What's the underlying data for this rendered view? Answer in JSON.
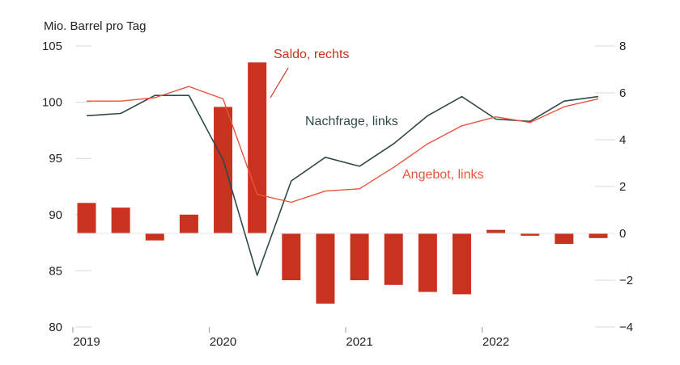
{
  "chart_data": {
    "type": "bar+line",
    "y_axis_left_label": "Mio. Barrel pro Tag",
    "y_left_ticks": [
      80,
      85,
      90,
      95,
      100,
      105
    ],
    "y_left_lim": [
      80,
      105
    ],
    "y_right_ticks": [
      -4,
      -2,
      0,
      2,
      4,
      6,
      8
    ],
    "y_right_tick_labels": [
      "−4",
      "−2",
      "0",
      "2",
      "4",
      "6",
      "8"
    ],
    "y_right_lim": [
      -4,
      8
    ],
    "x_ticks": [
      "2019",
      "2020",
      "2021",
      "2022"
    ],
    "x_tick_index": [
      0,
      4,
      8,
      12
    ],
    "quarters": [
      "2019 Q1",
      "2019 Q2",
      "2019 Q3",
      "2019 Q4",
      "2020 Q1",
      "2020 Q2",
      "2020 Q3",
      "2020 Q4",
      "2021 Q1",
      "2021 Q2",
      "2021 Q3",
      "2021 Q4",
      "2022 Q1",
      "2022 Q2",
      "2022 Q3",
      "2022 Q4"
    ],
    "series": [
      {
        "name": "Saldo, rechts",
        "kind": "bar",
        "axis": "right",
        "color": "#c8321e",
        "values": [
          1.3,
          1.1,
          -0.3,
          0.8,
          5.4,
          7.3,
          -2.0,
          -3.0,
          -2.0,
          -2.2,
          -2.5,
          -2.6,
          0.15,
          -0.1,
          -0.45,
          -0.2
        ]
      },
      {
        "name": "Nachfrage, links",
        "kind": "line",
        "axis": "left",
        "color": "#2f4a4a",
        "values": [
          98.8,
          99.0,
          100.6,
          100.6,
          94.9,
          84.6,
          93.0,
          95.1,
          94.3,
          96.3,
          98.8,
          100.5,
          98.5,
          98.3,
          100.1,
          100.5
        ]
      },
      {
        "name": "Angebot, links",
        "kind": "line",
        "axis": "left",
        "color": "#e8553e",
        "values": [
          100.1,
          100.1,
          100.4,
          101.4,
          100.3,
          91.8,
          91.1,
          92.1,
          92.3,
          94.2,
          96.3,
          97.9,
          98.7,
          98.2,
          99.6,
          100.3
        ]
      }
    ],
    "annotations": [
      {
        "text": "Saldo, rechts",
        "series": 0
      },
      {
        "text": "Nachfrage, links",
        "series": 1
      },
      {
        "text": "Angebot, links",
        "series": 2
      }
    ],
    "grid": false
  }
}
